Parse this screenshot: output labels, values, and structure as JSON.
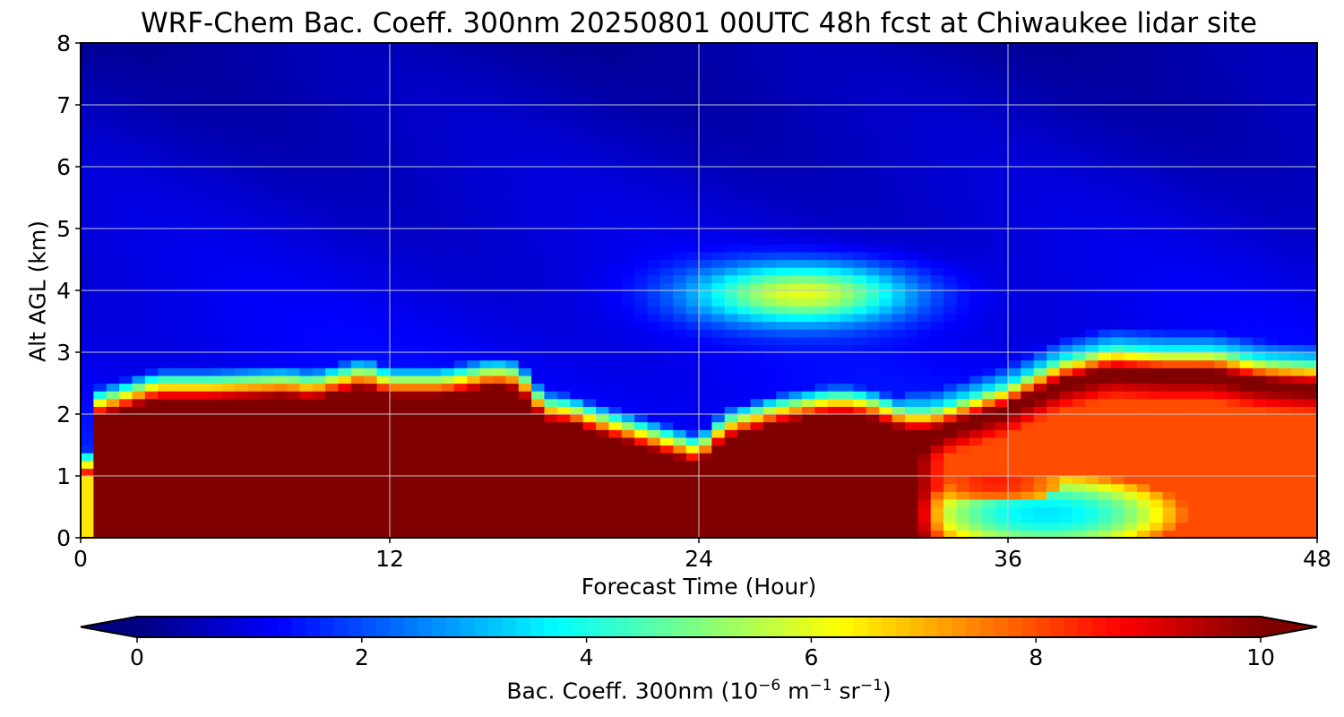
{
  "chart_data": {
    "type": "heatmap",
    "title": "WRF-Chem Bac. Coeff. 300nm  20250801 00UTC 48h fcst at Chiwaukee lidar site",
    "xlabel": "Forecast Time (Hour)",
    "ylabel": "Alt AGL (km)",
    "colorbar_label_main": "Bac. Coeff. 300nm",
    "colorbar_label_open": "(10",
    "colorbar_label_exp1": "−6",
    "colorbar_label_m": " m",
    "colorbar_label_exp2": "−1",
    "colorbar_label_sr": " sr",
    "colorbar_label_exp3": "−1",
    "colorbar_label_close": ")",
    "xlim": [
      0,
      48
    ],
    "ylim": [
      0,
      8
    ],
    "xticks": [
      "0",
      "12",
      "24",
      "36",
      "48"
    ],
    "yticks": [
      "0",
      "1",
      "2",
      "3",
      "4",
      "5",
      "6",
      "7",
      "8"
    ],
    "colorbar_ticks": [
      "0",
      "2",
      "4",
      "6",
      "8",
      "10"
    ],
    "colorbar_range": [
      0,
      10
    ],
    "colormap": "jet",
    "grid": true,
    "layer_top_km": {
      "hours": [
        0,
        0.5,
        1,
        3,
        5,
        8,
        9,
        10,
        11,
        12,
        14,
        16,
        17,
        18,
        19,
        20,
        22,
        24,
        25,
        27,
        29,
        30,
        31,
        32,
        33,
        36,
        38,
        40,
        42,
        44,
        46,
        48
      ],
      "values": [
        0,
        1.95,
        2.0,
        2.25,
        2.25,
        2.3,
        2.25,
        2.35,
        2.45,
        2.3,
        2.3,
        2.45,
        2.4,
        1.9,
        1.85,
        1.7,
        1.45,
        1.2,
        1.6,
        1.85,
        2.0,
        2.0,
        1.9,
        1.75,
        1.75,
        2.15,
        2.55,
        2.75,
        2.7,
        2.7,
        2.55,
        2.5
      ]
    },
    "aerosol_plume": {
      "center_hour": 28,
      "center_alt_km": 3.95,
      "peak_value": 6.0
    },
    "lower_layer_cleaner_region": {
      "start_hour": 32,
      "end_hour": 48,
      "min_value": 3.5
    }
  }
}
